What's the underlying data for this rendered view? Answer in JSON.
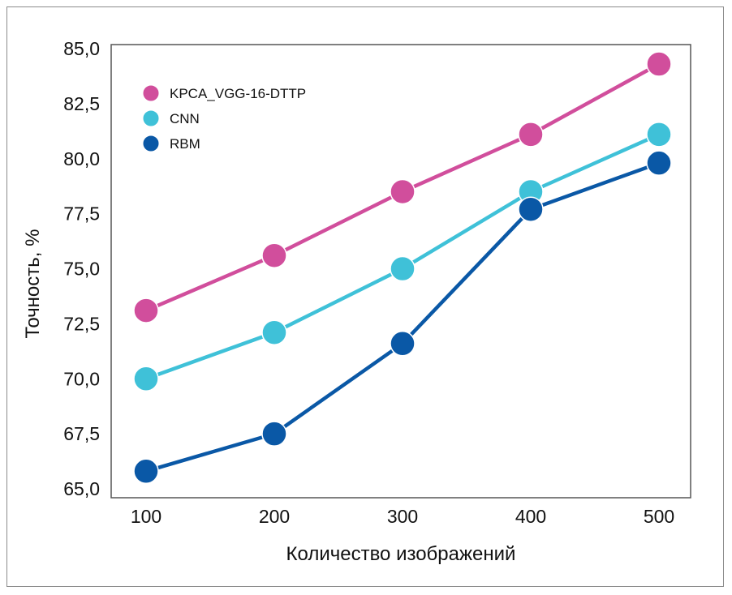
{
  "chart_data": {
    "type": "line",
    "title": "",
    "xlabel": "Количество изображений",
    "ylabel": "Точность, %",
    "x": [
      100,
      200,
      300,
      400,
      500
    ],
    "x_tick_labels": [
      "100",
      "200",
      "300",
      "400",
      "500"
    ],
    "y_tick_labels": [
      "65,0",
      "67,5",
      "70,0",
      "72,5",
      "75,0",
      "77,5",
      "80,0",
      "82,5",
      "85,0"
    ],
    "ylim": [
      65,
      85
    ],
    "grid": false,
    "legend_position": "top-left",
    "series": [
      {
        "name": "KPCA_VGG-16-DTTP",
        "color": "#d14e9c",
        "values": [
          73.1,
          75.6,
          78.5,
          81.1,
          84.3
        ]
      },
      {
        "name": "CNN",
        "color": "#3fc1d8",
        "values": [
          70.0,
          72.1,
          75.0,
          78.5,
          81.1
        ]
      },
      {
        "name": "RBM",
        "color": "#0a58a6",
        "values": [
          65.8,
          67.5,
          71.6,
          77.7,
          79.8
        ]
      }
    ]
  }
}
